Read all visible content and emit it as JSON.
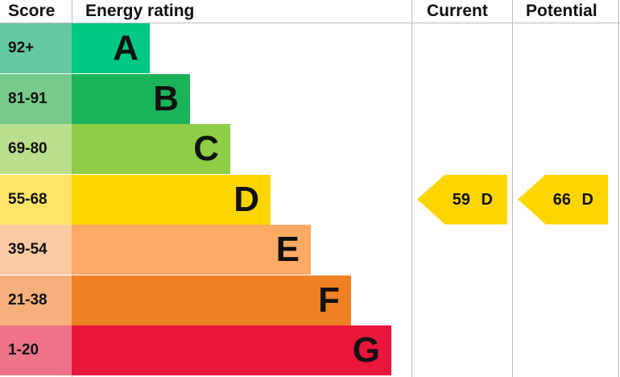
{
  "headers": {
    "score": "Score",
    "rating": "Energy rating",
    "current": "Current",
    "potential": "Potential"
  },
  "chart_data": {
    "type": "table",
    "bands": [
      {
        "letter": "A",
        "range": "92+",
        "color": "#00c781",
        "light": "#64c8a3"
      },
      {
        "letter": "B",
        "range": "81-91",
        "color": "#1bb35a",
        "light": "#76cb8c"
      },
      {
        "letter": "C",
        "range": "69-80",
        "color": "#8dce46",
        "light": "#badf8c"
      },
      {
        "letter": "D",
        "range": "55-68",
        "color": "#ffd500",
        "light": "#ffe566"
      },
      {
        "letter": "E",
        "range": "39-54",
        "color": "#fcaa65",
        "light": "#fdcba3"
      },
      {
        "letter": "F",
        "range": "21-38",
        "color": "#ef8023",
        "light": "#f5b07b"
      },
      {
        "letter": "G",
        "range": "1-20",
        "color": "#e9153b",
        "light": "#f07489"
      }
    ],
    "current": {
      "score": 59,
      "band": "D",
      "label": "59 D"
    },
    "potential": {
      "score": 66,
      "band": "D",
      "label": "66 D"
    }
  }
}
